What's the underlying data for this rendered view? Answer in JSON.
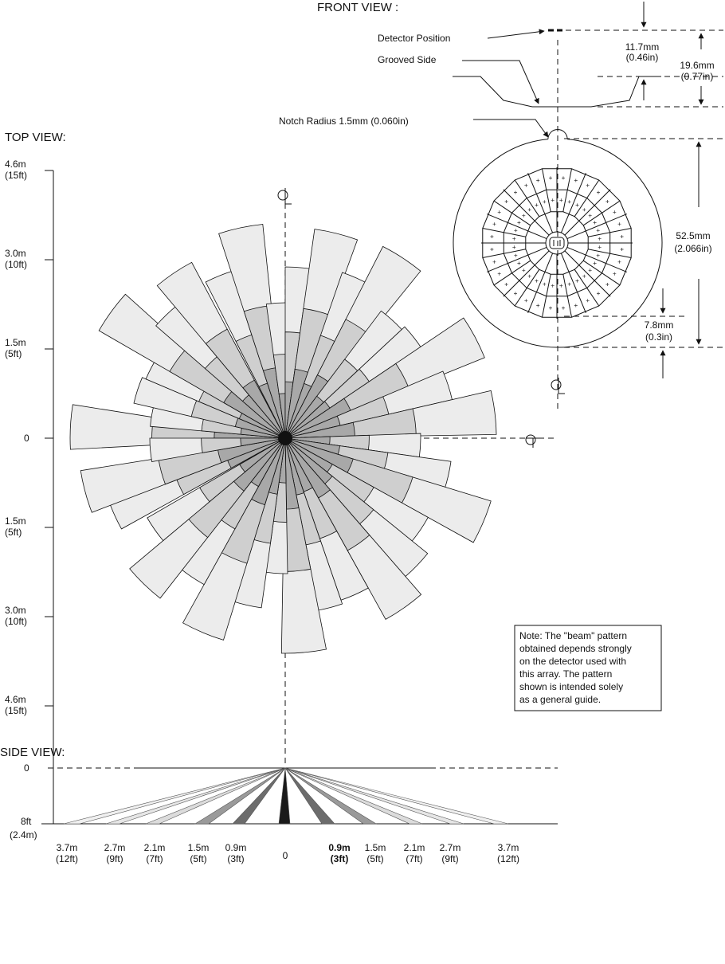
{
  "front_view": {
    "title": "FRONT VIEW :",
    "detector_position": "Detector Position",
    "grooved_side": "Grooved Side",
    "notch_radius": "Notch Radius 1.5mm (0.060in)",
    "dim_117_mm": "11.7mm",
    "dim_117_in": "(0.46in)",
    "dim_196_mm": "19.6mm",
    "dim_196_in": "(0.77in)",
    "dim_525_mm": "52.5mm",
    "dim_525_in": "(2.066in)",
    "dim_78_mm": "7.8mm",
    "dim_78_in": "(0.3in)",
    "centerline": "CL"
  },
  "top_view": {
    "title": "TOP VIEW:",
    "axis_labels": [
      {
        "m": "4.6m",
        "ft": "(15ft)"
      },
      {
        "m": "3.0m",
        "ft": "(10ft)"
      },
      {
        "m": "1.5m",
        "ft": "(5ft)"
      },
      {
        "m": "0",
        "ft": ""
      },
      {
        "m": "1.5m",
        "ft": "(5ft)"
      },
      {
        "m": "3.0m",
        "ft": "(10ft)"
      },
      {
        "m": "4.6m",
        "ft": "(15ft)"
      }
    ],
    "centerline": "CL"
  },
  "note": {
    "lines": [
      "Note:  The \"beam\" pattern",
      "obtained depends strongly",
      "on the detector used with",
      "this array.  The pattern",
      "shown is intended solely",
      "as a general guide."
    ]
  },
  "side_view": {
    "title": "SIDE VIEW:",
    "y_top": "0",
    "y_bottom_ft": "8ft",
    "y_bottom_m": "(2.4m)",
    "x_labels": [
      {
        "m": "3.7m",
        "ft": "(12ft)"
      },
      {
        "m": "2.7m",
        "ft": "(9ft)"
      },
      {
        "m": "2.1m",
        "ft": "(7ft)"
      },
      {
        "m": "1.5m",
        "ft": "(5ft)"
      },
      {
        "m": "0.9m",
        "ft": "(3ft)"
      },
      {
        "m": "0",
        "ft": ""
      },
      {
        "m": "0.9m",
        "ft": "(3ft)"
      },
      {
        "m": "1.5m",
        "ft": "(5ft)"
      },
      {
        "m": "2.1m",
        "ft": "(7ft)"
      },
      {
        "m": "2.7m",
        "ft": "(9ft)"
      },
      {
        "m": "3.7m",
        "ft": "(12ft)"
      }
    ]
  }
}
